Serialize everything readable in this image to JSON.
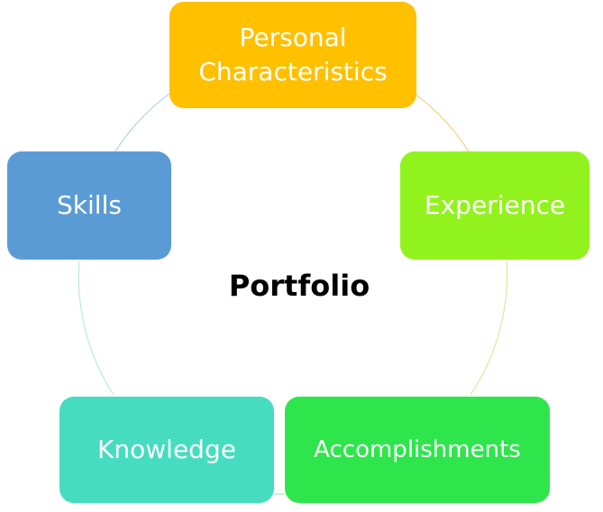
{
  "diagram": {
    "center_label": "Portfolio",
    "nodes": [
      {
        "key": "personal",
        "label": "Personal\nCharacteristics",
        "color": "#FFC000"
      },
      {
        "key": "experience",
        "label": "Experience",
        "color": "#92F21E"
      },
      {
        "key": "accomplishments",
        "label": "Accomplishments",
        "color": "#2EE64C"
      },
      {
        "key": "knowledge",
        "label": "Knowledge",
        "color": "#46DCC0"
      },
      {
        "key": "skills",
        "label": "Skills",
        "color": "#5B9BD5"
      }
    ],
    "connector_colors": [
      "#F7C96A",
      "#C6EE8A",
      "#9BE9A8",
      "#A9E8DD",
      "#A9C8E8"
    ]
  }
}
